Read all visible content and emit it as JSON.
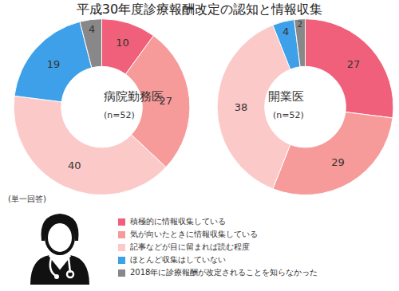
{
  "title": "平成30年度診療報酬改定の認知と情報収集",
  "note": "(単一回答)",
  "chart_data": [
    {
      "type": "pie",
      "title": "病院勤務医",
      "subtitle": "(n=52)",
      "categories": [
        "積極的に情報収集している",
        "気が向いたときに情報収集している",
        "記事などが目に留まれば読む程度",
        "ほとんど収集はしていない",
        "2018年に診療報酬が改定されることを知らなかった"
      ],
      "values": [
        10,
        27,
        40,
        19,
        4
      ],
      "colors": [
        "#f0607a",
        "#f79a9a",
        "#fcc9c9",
        "#3ea0e8",
        "#888888"
      ],
      "data_labels": true,
      "legend": "bottom"
    },
    {
      "type": "pie",
      "title": "開業医",
      "subtitle": "(n=52)",
      "categories": [
        "積極的に情報収集している",
        "気が向いたときに情報収集している",
        "記事などが目に留まれば読む程度",
        "ほとんど収集はしていない",
        "2018年に診療報酬が改定されることを知らなかった"
      ],
      "values": [
        27,
        29,
        38,
        4,
        2
      ],
      "colors": [
        "#f0607a",
        "#f79a9a",
        "#fcc9c9",
        "#3ea0e8",
        "#888888"
      ],
      "data_labels": true,
      "legend": "bottom"
    }
  ]
}
